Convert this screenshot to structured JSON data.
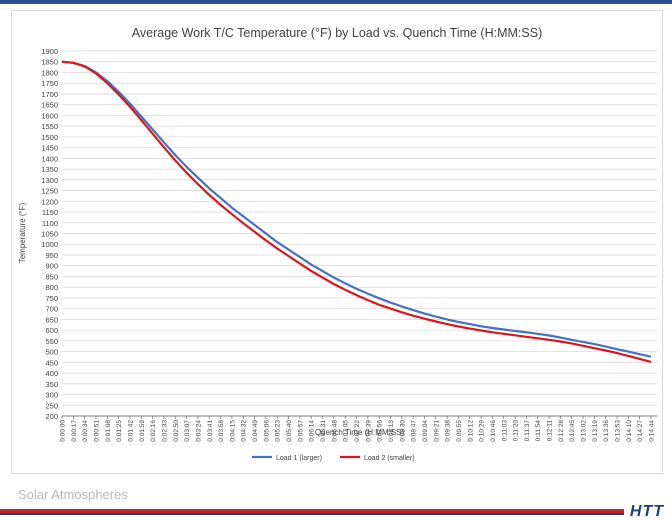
{
  "colors": {
    "top_bar": "#2e4f8f",
    "footer_rule": "#c0272d",
    "logo": "#1f3f7a",
    "series1": "#4472c4",
    "series2": "#d7191c",
    "grid": "#d9d9d9",
    "axis": "#595959",
    "text": "#404040"
  },
  "branding": {
    "company": "Solar Atmospheres",
    "logo": "HTT"
  },
  "chart_data": {
    "type": "line",
    "title": "Average Work T/C Temperature (°F) by Load vs. Quench Time (H:MM:SS)",
    "xlabel": "Quench Time (H:MM:SS)",
    "ylabel": "Temperature (°F)",
    "ylim": [
      200,
      1900
    ],
    "ystep": 50,
    "grid": true,
    "legend_position": "bottom-center",
    "categories": [
      "0:00:00",
      "0:00:17",
      "0:00:34",
      "0:00:51",
      "0:01:08",
      "0:01:25",
      "0:01:42",
      "0:01:59",
      "0:02:16",
      "0:02:33",
      "0:02:50",
      "0:03:07",
      "0:03:24",
      "0:03:41",
      "0:03:58",
      "0:04:15",
      "0:04:32",
      "0:04:49",
      "0:05:06",
      "0:05:23",
      "0:05:40",
      "0:05:57",
      "0:06:14",
      "0:06:31",
      "0:06:48",
      "0:07:05",
      "0:07:22",
      "0:07:39",
      "0:07:56",
      "0:08:13",
      "0:08:30",
      "0:08:47",
      "0:09:04",
      "0:09:21",
      "0:09:38",
      "0:09:55",
      "0:10:12",
      "0:10:29",
      "0:10:46",
      "0:11:03",
      "0:11:20",
      "0:11:37",
      "0:11:54",
      "0:12:11",
      "0:12:28",
      "0:12:45",
      "0:13:02",
      "0:13:19",
      "0:13:36",
      "0:13:53",
      "0:14:10",
      "0:14:27",
      "0:14:44"
    ],
    "series": [
      {
        "name": "Load 1 (larger)",
        "values": [
          1850,
          1845,
          1830,
          1800,
          1760,
          1710,
          1655,
          1595,
          1535,
          1475,
          1415,
          1360,
          1310,
          1260,
          1215,
          1170,
          1130,
          1090,
          1050,
          1010,
          975,
          940,
          905,
          875,
          845,
          818,
          793,
          770,
          748,
          728,
          710,
          693,
          677,
          663,
          650,
          638,
          628,
          618,
          610,
          603,
          596,
          590,
          583,
          575,
          565,
          555,
          545,
          535,
          523,
          511,
          500,
          488,
          476
        ]
      },
      {
        "name": "Load 2 (smaller)",
        "values": [
          1850,
          1845,
          1828,
          1795,
          1750,
          1698,
          1640,
          1578,
          1515,
          1452,
          1390,
          1333,
          1280,
          1230,
          1183,
          1140,
          1098,
          1058,
          1018,
          980,
          945,
          910,
          876,
          845,
          815,
          788,
          763,
          740,
          718,
          700,
          683,
          667,
          653,
          640,
          628,
          617,
          607,
          598,
          590,
          583,
          576,
          569,
          562,
          555,
          547,
          538,
          527,
          516,
          505,
          493,
          480,
          466,
          452
        ]
      }
    ]
  }
}
